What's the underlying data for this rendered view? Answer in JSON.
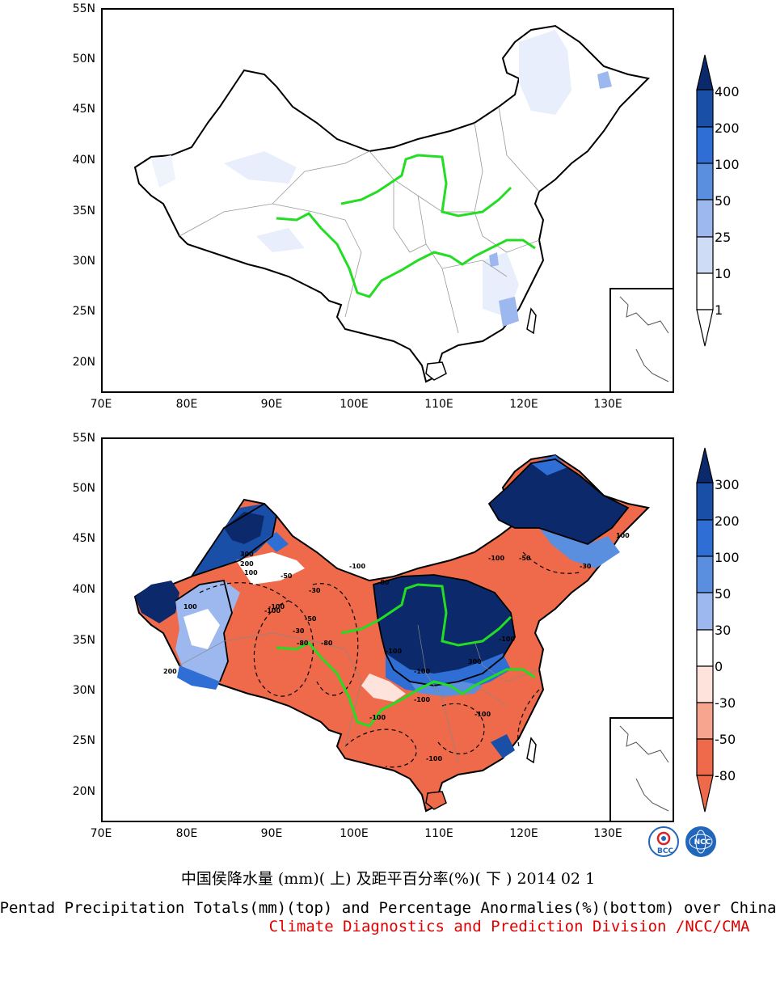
{
  "top_map": {
    "lat_labels": [
      "55N",
      "50N",
      "45N",
      "40N",
      "35N",
      "30N",
      "25N",
      "20N"
    ],
    "lon_labels": [
      "70E",
      "80E",
      "90E",
      "100E",
      "110E",
      "120E",
      "130E"
    ],
    "colorbar_labels": [
      "400",
      "200",
      "100",
      "50",
      "25",
      "10",
      "1"
    ],
    "colorbar_colors": [
      "#0c2a6b",
      "#1a4fa8",
      "#2f6ed4",
      "#5a8fe0",
      "#9cb8ee",
      "#cfdcf6",
      "#ffffff"
    ]
  },
  "bottom_map": {
    "lat_labels": [
      "55N",
      "50N",
      "45N",
      "40N",
      "35N",
      "30N",
      "25N",
      "20N"
    ],
    "lon_labels": [
      "70E",
      "80E",
      "90E",
      "100E",
      "110E",
      "120E",
      "130E"
    ],
    "colorbar_labels": [
      "300",
      "200",
      "100",
      "50",
      "30",
      "0",
      "-30",
      "-50",
      "-80"
    ],
    "colorbar_colors": [
      "#0c2a6b",
      "#1a4fa8",
      "#2f6ed4",
      "#5a8fe0",
      "#9cb8ee",
      "#ffffff",
      "#fde3dc",
      "#f7a58f",
      "#ef6a4a"
    ],
    "contour_labels": [
      "-100",
      "-50",
      "-30",
      "-80",
      "-100",
      "300",
      "200",
      "100",
      "100",
      "200",
      "-100",
      "-50",
      "-30",
      "-100",
      "100",
      "-100",
      "-80",
      "-100",
      "-100",
      "-50",
      "-30",
      "-80",
      "-100",
      "-100",
      "-100",
      "300",
      "-100"
    ]
  },
  "footer": {
    "chinese_title": "中国侯降水量 (mm)( 上) 及距平百分率(%)( 下 ) 2014 02 1",
    "english_title": "Pentad Precipitation Totals(mm)(top) and Percentage Anormalies(%)(bottom) over China",
    "credit": "Climate Diagnostics and Prediction Division /NCC/CMA"
  },
  "logos": {
    "left": "BCC",
    "right": "NCC"
  }
}
